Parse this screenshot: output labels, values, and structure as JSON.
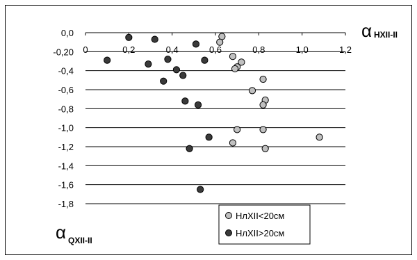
{
  "chart_data": {
    "type": "scatter",
    "title": "",
    "xlabel": {
      "symbol": "α",
      "subscript": "HXII-II"
    },
    "ylabel": {
      "symbol": "α",
      "subscript": "QXII-II"
    },
    "xlim": [
      0,
      1.2
    ],
    "ylim": [
      -1.8,
      0
    ],
    "x_ticks": [
      "0",
      "0,2",
      "0,4",
      "0,6",
      "0,8",
      "1,0",
      "1,2"
    ],
    "x_tick_values": [
      0,
      0.2,
      0.4,
      0.6,
      0.8,
      1.0,
      1.2
    ],
    "y_ticks": [
      "0,0",
      "-0,20",
      "-0,4",
      "-0,6",
      "-0,8",
      "-1,0",
      "-1,2",
      "-1,4",
      "-1,6",
      "-1,8"
    ],
    "y_tick_values": [
      0,
      -0.2,
      -0.4,
      -0.6,
      -0.8,
      -1.0,
      -1.2,
      -1.4,
      -1.6,
      -1.8
    ],
    "grid": "horizontal",
    "legend_position": "bottom-center",
    "series": [
      {
        "name": "НлXII<20см",
        "color": "#c0c0c0",
        "points": [
          [
            0.63,
            -0.04
          ],
          [
            0.62,
            -0.1
          ],
          [
            0.72,
            -0.31
          ],
          [
            0.68,
            -0.25
          ],
          [
            0.7,
            -0.36
          ],
          [
            0.69,
            -0.38
          ],
          [
            0.82,
            -0.49
          ],
          [
            0.77,
            -0.61
          ],
          [
            0.83,
            -0.71
          ],
          [
            0.82,
            -0.76
          ],
          [
            0.7,
            -1.02
          ],
          [
            0.82,
            -1.02
          ],
          [
            1.08,
            -1.1
          ],
          [
            0.68,
            -1.16
          ],
          [
            0.83,
            -1.22
          ]
        ]
      },
      {
        "name": "НлXII>20см",
        "color": "#3a3a3a",
        "points": [
          [
            0.2,
            -0.05
          ],
          [
            0.32,
            -0.07
          ],
          [
            0.51,
            -0.12
          ],
          [
            0.1,
            -0.29
          ],
          [
            0.29,
            -0.33
          ],
          [
            0.38,
            -0.28
          ],
          [
            0.55,
            -0.29
          ],
          [
            0.42,
            -0.39
          ],
          [
            0.45,
            -0.45
          ],
          [
            0.36,
            -0.51
          ],
          [
            0.46,
            -0.72
          ],
          [
            0.52,
            -0.76
          ],
          [
            0.57,
            -1.1
          ],
          [
            0.48,
            -1.22
          ],
          [
            0.53,
            -1.65
          ]
        ]
      }
    ]
  }
}
